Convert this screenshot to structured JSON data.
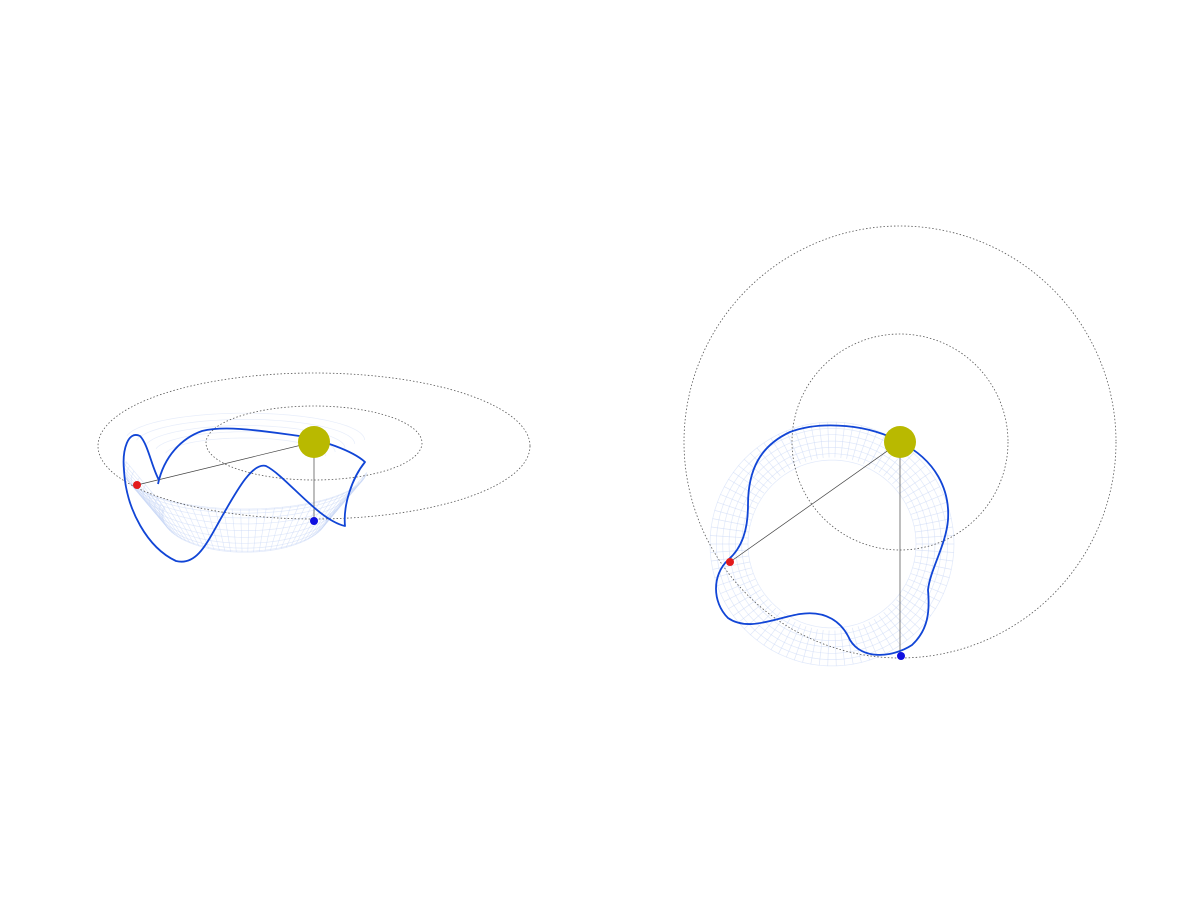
{
  "colors": {
    "background": "#ffffff",
    "surface_mesh": "#c9d7f5",
    "trajectory": "#1145d6",
    "sun": "#b9b900",
    "planet": "#e31a1c",
    "projection_point": "#1010e0",
    "guide_line": "#444444"
  },
  "views": [
    {
      "name": "perspective-view"
    },
    {
      "name": "top-view"
    }
  ]
}
